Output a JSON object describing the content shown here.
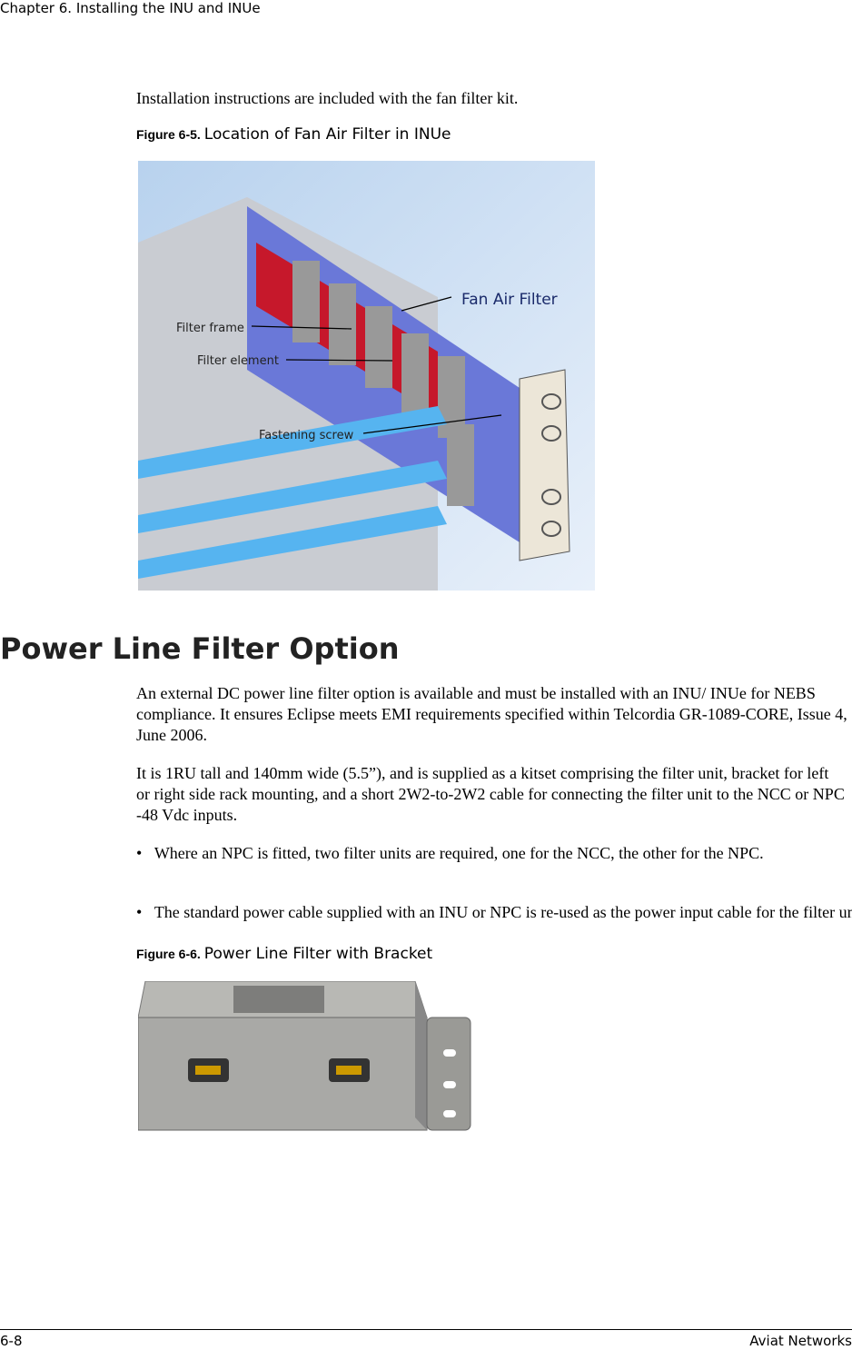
{
  "header": {
    "chapter": "Chapter 6.  Installing the INU and INUe"
  },
  "intro": "Installation instructions are included with the fan filter kit.",
  "figures": [
    {
      "label": "Figure 6-5.",
      "caption": "Location of Fan Air Filter in INUe",
      "callouts": [
        "Fan Air Filter",
        "Filter frame",
        "Filter element",
        "Fastening screw"
      ]
    },
    {
      "label": "Figure 6-6.",
      "caption": "Power Line Filter with Bracket"
    }
  ],
  "section": {
    "heading": "Power Line Filter Option",
    "paragraphs": [
      "An external DC power line filter option is available and must be installed with an INU/ INUe for NEBS compliance. It ensures Eclipse meets EMI requirements specified within Telcordia GR-1089-CORE, Issue 4, June 2006.",
      "It is 1RU tall and 140mm wide (5.5”), and is supplied as a kitset comprising the filter unit, bracket for left or right side rack mounting, and a short 2W2-to-2W2 cable for connecting the filter unit to the NCC or NPC -48 Vdc inputs."
    ],
    "bullets": [
      "Where an NPC is fitted, two filter units are required, one for the NCC, the other for the NPC.",
      "The standard power cable supplied with an INU or NPC is re-used as the power input cable for the filter unit."
    ]
  },
  "footer": {
    "page": "6-8",
    "publisher": "Aviat Networks"
  }
}
